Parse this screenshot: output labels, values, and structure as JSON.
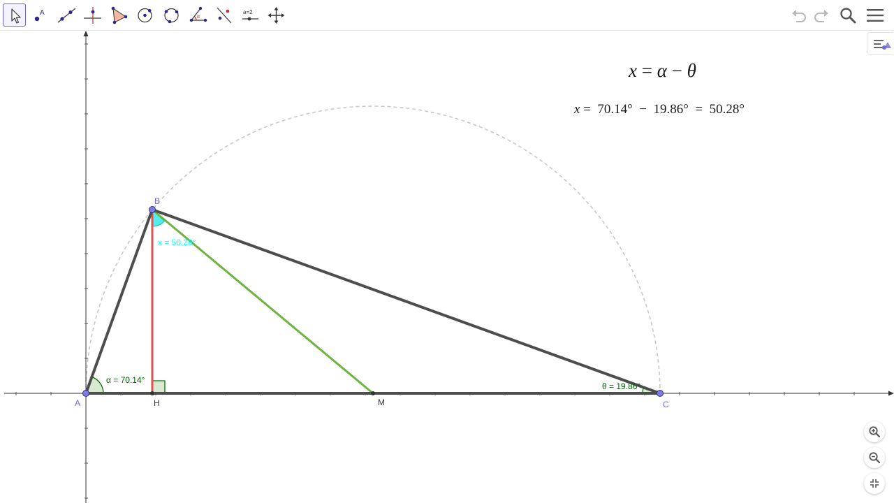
{
  "toolbar": {
    "tools": [
      {
        "id": "move",
        "icon": "move-cursor-icon",
        "active": true
      },
      {
        "id": "point",
        "icon": "point-icon",
        "label": "A"
      },
      {
        "id": "line",
        "icon": "line-icon"
      },
      {
        "id": "perpendicular",
        "icon": "perpendicular-line-icon"
      },
      {
        "id": "polygon",
        "icon": "polygon-icon"
      },
      {
        "id": "circle",
        "icon": "circle-center-point-icon"
      },
      {
        "id": "circle-three-points",
        "icon": "circle-three-points-icon"
      },
      {
        "id": "angle",
        "icon": "angle-icon",
        "label": "α"
      },
      {
        "id": "reflect",
        "icon": "reflect-about-line-icon"
      },
      {
        "id": "slider",
        "icon": "slider-icon",
        "label": "a=2"
      },
      {
        "id": "move-view",
        "icon": "move-graphics-view-icon"
      }
    ],
    "undo_icon": "undo-icon",
    "redo_icon": "redo-icon",
    "search_icon": "search-icon",
    "menu_icon": "hamburger-menu-icon"
  },
  "formulas": {
    "line1": {
      "lhs": "x",
      "eq": "=",
      "a": "α",
      "minus": "−",
      "b": "θ"
    },
    "line2": {
      "lhs": "x",
      "eq": "=",
      "v1": "70.14°",
      "minus": "−",
      "v2": "19.86°",
      "eq2": "=",
      "v3": "50.28°"
    }
  },
  "points": {
    "A": "A",
    "B": "B",
    "C": "C",
    "H": "H",
    "M": "M"
  },
  "angles": {
    "alpha": "α = 70.14°",
    "theta": "θ = 19.86°",
    "x": "x = 50.28°"
  },
  "colors": {
    "triangle": "#4d4d4d",
    "altitude": "#e05050",
    "median": "#6db33f",
    "angle_green": "#006400",
    "angle_x": "#00ffff",
    "point": "#6d6dd9",
    "semicircle": "#c8c8c8",
    "axis": "#333333"
  },
  "zoom": {
    "zoom_in_icon": "zoom-in-icon",
    "zoom_out_icon": "zoom-out-icon",
    "fullscreen_icon": "exit-fullscreen-icon"
  },
  "stylebar_icon": "graphics-style-bar-icon"
}
